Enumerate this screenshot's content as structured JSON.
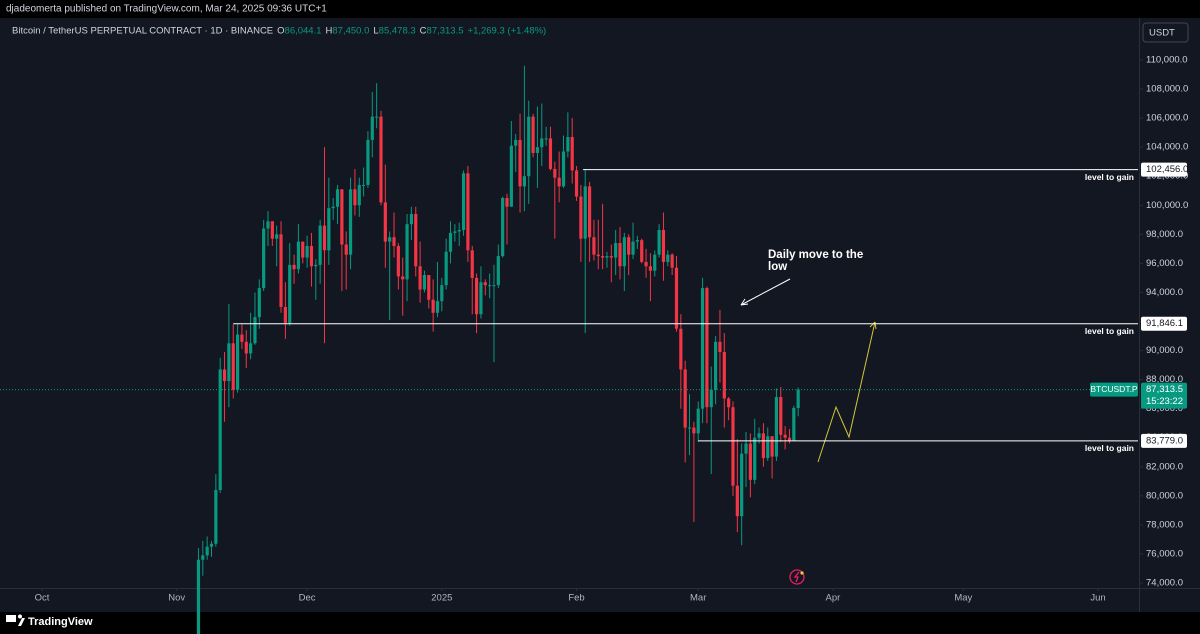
{
  "header": {
    "publisher": "djadeomerta published on TradingView.com, Mar 24, 2025 09:36 UTC+1",
    "brand": "TradingView"
  },
  "chart_data": {
    "type": "candlestick",
    "symbol": "Bitcoin / TetherUS PERPETUAL CONTRACT · 1D · BINANCE",
    "ohlc_legend": [
      {
        "key": "O",
        "value": "86,044.1"
      },
      {
        "key": "H",
        "value": "87,450.0"
      },
      {
        "key": "L",
        "value": "85,478.3"
      },
      {
        "key": "C",
        "value": "87,313.5"
      }
    ],
    "change": "+1,269.3 (+1.48%)",
    "currency": "USDT",
    "up_color": "#089981",
    "down_color": "#f23645",
    "xlim": [
      -9.67,
      252.2
    ],
    "xticks": [
      {
        "value": 0,
        "label": "Oct"
      },
      {
        "value": 31,
        "label": "Nov"
      },
      {
        "value": 61,
        "label": "Dec"
      },
      {
        "value": 92,
        "label": "2025"
      },
      {
        "value": 123,
        "label": "Feb"
      },
      {
        "value": 151,
        "label": "Mar"
      },
      {
        "value": 182,
        "label": "Apr"
      },
      {
        "value": 212,
        "label": "May"
      },
      {
        "value": 243,
        "label": "Jun"
      }
    ],
    "ylim": [
      73656,
      112890
    ],
    "yticks": [
      {
        "value": 74000,
        "label": "74,000.0"
      },
      {
        "value": 76000,
        "label": "76,000.0"
      },
      {
        "value": 78000,
        "label": "78,000.0"
      },
      {
        "value": 80000,
        "label": "80,000.0"
      },
      {
        "value": 82000,
        "label": "82,000.0"
      },
      {
        "value": 84000,
        "label": "84,000.0"
      },
      {
        "value": 86000,
        "label": "86,000.0"
      },
      {
        "value": 88000,
        "label": "88,000.0"
      },
      {
        "value": 90000,
        "label": "90,000.0"
      },
      {
        "value": 92000,
        "label": "92,000.0"
      },
      {
        "value": 94000,
        "label": "94,000.0"
      },
      {
        "value": 96000,
        "label": "96,000.0"
      },
      {
        "value": 98000,
        "label": "98,000.0"
      },
      {
        "value": 100000,
        "label": "100,000.0"
      },
      {
        "value": 102000,
        "label": "102,000.0"
      },
      {
        "value": 104000,
        "label": "104,000.0"
      },
      {
        "value": 106000,
        "label": "106,000.0"
      },
      {
        "value": 108000,
        "label": "108,000.0"
      },
      {
        "value": 110000,
        "label": "110,000.0"
      }
    ],
    "x": [
      36,
      37,
      38,
      39,
      40,
      41,
      42,
      43,
      44,
      45,
      46,
      47,
      48,
      49,
      50,
      51,
      52,
      53,
      54,
      55,
      56,
      57,
      58,
      59,
      60,
      61,
      62,
      63,
      64,
      65,
      66,
      67,
      68,
      69,
      70,
      71,
      72,
      73,
      74,
      75,
      76,
      77,
      78,
      79,
      80,
      81,
      82,
      83,
      84,
      85,
      86,
      87,
      88,
      89,
      90,
      91,
      92,
      93,
      94,
      95,
      96,
      97,
      98,
      99,
      100,
      101,
      102,
      103,
      104,
      105,
      106,
      107,
      108,
      109,
      110,
      111,
      112,
      113,
      114,
      115,
      116,
      117,
      118,
      119,
      120,
      121,
      122,
      123,
      124,
      125,
      126,
      127,
      128,
      129,
      130,
      131,
      132,
      133,
      134,
      135,
      136,
      137,
      138,
      139,
      140,
      141,
      142,
      143,
      144,
      145,
      146,
      147,
      148,
      149,
      150,
      151,
      152,
      153,
      154,
      155,
      156,
      157,
      158,
      159,
      160,
      161,
      162,
      163,
      164,
      165,
      166,
      167,
      168,
      169,
      170,
      171,
      172,
      173,
      174
    ],
    "series": [
      {
        "name": "BTCUSDT.P",
        "last_label": "87,313.5",
        "countdown": "15:23:22",
        "open": [
          69400,
          75600,
          75900,
          76500,
          76700,
          80400,
          88700,
          87900,
          90500,
          87300,
          91100,
          90600,
          89800,
          90500,
          92300,
          94300,
          98400,
          98900,
          97700,
          98000,
          93000,
          91900,
          95900,
          95600,
          97500,
          96400,
          97200,
          95800,
          95900,
          98600,
          96900,
          99800,
          99900,
          101100,
          97300,
          96600,
          101100,
          100000,
          101400,
          101400,
          104500,
          106100,
          106100,
          100200,
          97500,
          97800,
          97200,
          95100,
          94900,
          98700,
          99400,
          95800,
          94200,
          95200,
          93500,
          92600,
          93400,
          94500,
          96800,
          98100,
          98200,
          98300,
          102200,
          96900,
          95000,
          92500,
          94700,
          94500,
          94500,
          94500,
          96500,
          100500,
          99900,
          104100,
          104500,
          101300,
          102000,
          106100,
          103600,
          104000,
          104600,
          104600,
          102500,
          101900,
          101300,
          103700,
          104700,
          102400,
          100600,
          97700,
          101300,
          97800,
          96600,
          96500,
          96400,
          96500,
          96400,
          97400,
          95800,
          97800,
          96600,
          97500,
          97600,
          96100,
          95800,
          95500,
          96600,
          98300,
          96100,
          96600,
          95700,
          91500,
          88700,
          84700,
          84700,
          84300,
          86000,
          94300,
          86100,
          87300,
          90600,
          89900,
          86700,
          86100,
          80700,
          78600,
          82900,
          83600,
          81100,
          84000,
          84300,
          82600,
          84100,
          82700,
          86800,
          84200,
          84000,
          83800,
          86044.1
        ],
        "high": [
          76400,
          76900,
          77200,
          76900,
          81500,
          89500,
          89900,
          93200,
          91800,
          91800,
          91800,
          91400,
          92600,
          94000,
          94900,
          99000,
          99600,
          98900,
          98600,
          98900,
          94700,
          97400,
          96600,
          98700,
          97500,
          97900,
          98100,
          96300,
          99000,
          104000,
          101900,
          100500,
          101400,
          101100,
          98200,
          101900,
          102500,
          101900,
          102600,
          105100,
          107800,
          108400,
          106500,
          102800,
          98200,
          99500,
          97400,
          96400,
          99400,
          99900,
          99900,
          97500,
          95500,
          95200,
          94900,
          96100,
          95000,
          97700,
          98900,
          98700,
          98800,
          102400,
          102700,
          97200,
          95300,
          95800,
          94900,
          95300,
          95900,
          97300,
          100600,
          100800,
          105800,
          104900,
          106300,
          109600,
          107200,
          106300,
          106800,
          107000,
          105400,
          105400,
          103000,
          103700,
          104800,
          106400,
          106000,
          102700,
          101400,
          102500,
          101600,
          99000,
          99000,
          100100,
          96800,
          97300,
          98300,
          98500,
          98100,
          98000,
          98800,
          97900,
          97700,
          97000,
          96700,
          96900,
          98700,
          99500,
          96900,
          96700,
          96500,
          92500,
          89300,
          87000,
          85100,
          86500,
          95000,
          94400,
          88900,
          91000,
          92800,
          91200,
          86800,
          86500,
          83900,
          83600,
          84400,
          84300,
          85300,
          84700,
          85000,
          84700,
          84100,
          87400,
          87500,
          84800,
          84600,
          86200,
          87450
        ],
        "low": [
          69300,
          74500,
          75600,
          75800,
          76500,
          80200,
          85100,
          86100,
          86700,
          87100,
          90100,
          88800,
          89400,
          90400,
          91500,
          94100,
          97200,
          97200,
          95800,
          92600,
          90800,
          91700,
          94600,
          95300,
          96000,
          95700,
          94400,
          93500,
          94600,
          90500,
          95900,
          99000,
          98700,
          94100,
          94200,
          95600,
          99300,
          99200,
          100600,
          101200,
          103300,
          105300,
          100000,
          95700,
          92100,
          96400,
          94200,
          92400,
          93400,
          97600,
          95100,
          93300,
          94000,
          92900,
          91300,
          92300,
          92700,
          94200,
          96000,
          97500,
          97200,
          97900,
          96100,
          92500,
          91200,
          92200,
          93800,
          93600,
          89200,
          94300,
          96400,
          97300,
          99900,
          102300,
          99500,
          99600,
          100100,
          103300,
          101200,
          102700,
          104100,
          102400,
          97700,
          100200,
          101200,
          103300,
          101500,
          100300,
          96100,
          91200,
          96100,
          96200,
          95600,
          95600,
          95700,
          94700,
          95200,
          94900,
          94100,
          95200,
          96300,
          97000,
          96000,
          95000,
          93400,
          95100,
          96400,
          94800,
          95800,
          95200,
          91300,
          86000,
          82300,
          82800,
          78200,
          83700,
          85000,
          85000,
          81500,
          86300,
          87800,
          84700,
          85200,
          80000,
          77500,
          76600,
          80600,
          79900,
          80800,
          83600,
          82000,
          82400,
          81200,
          82400,
          83700,
          83200,
          83600,
          83800,
          85478.3
        ],
        "close": [
          75600,
          75900,
          76500,
          76700,
          80400,
          88700,
          87900,
          90500,
          87300,
          91100,
          90600,
          89800,
          90500,
          92300,
          94300,
          98400,
          98900,
          97700,
          98000,
          93000,
          91900,
          95900,
          95600,
          97500,
          96400,
          97200,
          95800,
          95900,
          98600,
          96900,
          99800,
          99900,
          101100,
          97300,
          96600,
          101100,
          100000,
          101400,
          101400,
          104500,
          106100,
          106100,
          100200,
          97500,
          97800,
          97200,
          95100,
          94900,
          98700,
          99400,
          95800,
          94200,
          95200,
          93500,
          92600,
          93400,
          94500,
          96800,
          98100,
          98200,
          98300,
          102200,
          96900,
          95000,
          92500,
          94700,
          94500,
          94500,
          94500,
          96500,
          100500,
          99900,
          104100,
          104500,
          101300,
          102000,
          106100,
          103600,
          104000,
          104600,
          104600,
          102500,
          101900,
          101300,
          103700,
          104700,
          102400,
          100600,
          97700,
          101300,
          97800,
          96600,
          96500,
          96400,
          96500,
          96400,
          97400,
          95800,
          97800,
          96600,
          97500,
          97600,
          96100,
          95800,
          95500,
          96600,
          98300,
          96100,
          96600,
          95700,
          91500,
          88700,
          84700,
          84700,
          84300,
          86000,
          94300,
          86100,
          87300,
          90600,
          89900,
          86700,
          86100,
          80700,
          78600,
          82900,
          83600,
          81100,
          84000,
          84300,
          82600,
          84100,
          82700,
          86800,
          84200,
          84000,
          83800,
          86044.1,
          87313.5
        ]
      }
    ],
    "levels": [
      {
        "value": 102456,
        "label": "102,456.0",
        "x0": 124.5,
        "note": "level to gain"
      },
      {
        "value": 91846.1,
        "label": "91,846.1",
        "x0": 44,
        "note": "level to gain"
      },
      {
        "value": 83779,
        "label": "83,779.0",
        "x0": 151,
        "note": "level to gain"
      }
    ],
    "annotation": [
      "Daily move to the",
      "low"
    ]
  }
}
